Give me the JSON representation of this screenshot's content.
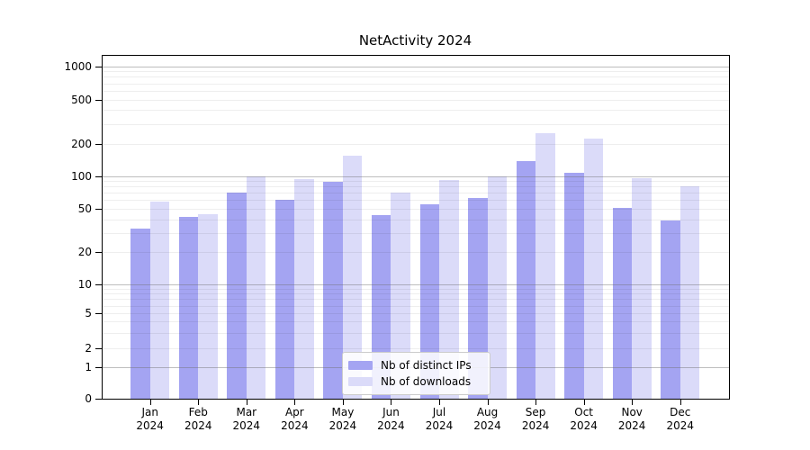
{
  "title": "NetActivity 2024",
  "chart_data": {
    "type": "bar",
    "title": "NetActivity 2024",
    "categories": [
      "Jan",
      "Feb",
      "Mar",
      "Apr",
      "May",
      "Jun",
      "Jul",
      "Aug",
      "Sep",
      "Oct",
      "Nov",
      "Dec"
    ],
    "category_sublabel": "2024",
    "series": [
      {
        "name": "Nb of distinct IPs",
        "color": "#a4a4f2",
        "values": [
          33,
          42,
          70,
          60,
          88,
          44,
          55,
          63,
          138,
          108,
          51,
          39
        ]
      },
      {
        "name": "Nb of downloads",
        "color": "#dbdbf9",
        "values": [
          58,
          45,
          100,
          93,
          155,
          70,
          92,
          100,
          250,
          220,
          95,
          81
        ]
      }
    ],
    "xlabel": "",
    "ylabel": "",
    "yscale": "log-like (log above 1, linear 0-1)",
    "ytick_labels": [
      "1000",
      "500",
      "200",
      "100",
      "50",
      "20",
      "10",
      "5",
      "2",
      "1",
      "0"
    ],
    "ylim": [
      0,
      1300
    ],
    "grid": "on (major gray lines at 1,10,100,1000; faint minors at 2-9 per decade)",
    "legend_position": "lower-center-inside"
  },
  "colors": {
    "background": "#ffffff",
    "axis": "#000000",
    "bar_dark": "#a4a4f2",
    "bar_light": "#dbdbf9",
    "major_grid": "#b9b9b9",
    "minor_grid": "#ededed",
    "legend_border": "#cccccc"
  }
}
